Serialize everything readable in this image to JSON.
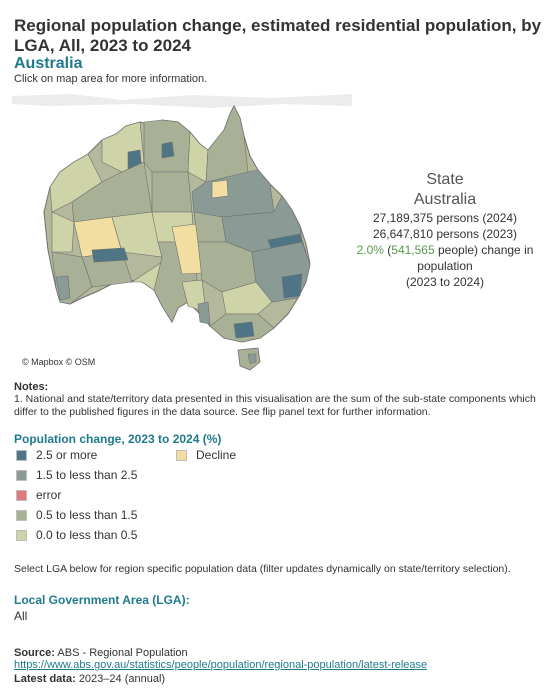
{
  "header": {
    "title": "Regional population change, estimated residential population, by LGA, All, 2023 to 2024",
    "subtitle": "Australia",
    "instruction": "Click on map area for more information."
  },
  "map": {
    "attribution": "© Mapbox © OSM",
    "colors": {
      "pct_2_5_or_more": "#4f7486",
      "pct_1_5_to_2_5": "#8a9b95",
      "error": "#e07a7f",
      "pct_0_5_to_1_5": "#a8b196",
      "pct_0_to_0_5": "#cfd3a8",
      "decline": "#f2dea0",
      "border": "#6f6f6f"
    }
  },
  "state_panel": {
    "label": "State",
    "name": "Australia",
    "persons_2024": "27,189,375 persons (2024)",
    "persons_2023": "26,647,810 persons (2023)",
    "change_pct": "2.0%",
    "change_people_open": "(",
    "change_people": "541,565",
    "change_people_suffix": "people) change in",
    "change_tail": "population",
    "period": "(2023 to 2024)"
  },
  "notes": {
    "title": "Notes:",
    "text": "1. National and state/territory data presented in this visualisation are the sum of the sub-state components which differ to the published figures in the data source. See flip panel text for further information."
  },
  "legend": {
    "title": "Population change, 2023 to 2024 (%)",
    "items": [
      {
        "label": "2.5 or more",
        "color": "#4f7486"
      },
      {
        "label": "1.5 to less than 2.5",
        "color": "#8a9b95"
      },
      {
        "label": "error",
        "color": "#e07a7f"
      },
      {
        "label": "0.5 to less than 1.5",
        "color": "#a8b196"
      },
      {
        "label": "0.0 to less than 0.5",
        "color": "#cfd3a8"
      },
      {
        "label": "Decline",
        "color": "#f2dea0"
      }
    ]
  },
  "select_note": "Select LGA below for region specific population data (filter updates dynamically on state/territory selection).",
  "lga_filter": {
    "title": "Local Government Area (LGA):",
    "value": "All"
  },
  "footer": {
    "source_label": "Source:",
    "source_text": "ABS - Regional Population",
    "source_link": "https://www.abs.gov.au/statistics/people/population/regional-population/latest-release",
    "latest_label": "Latest data:",
    "latest_text": "2023–24 (annual)"
  }
}
